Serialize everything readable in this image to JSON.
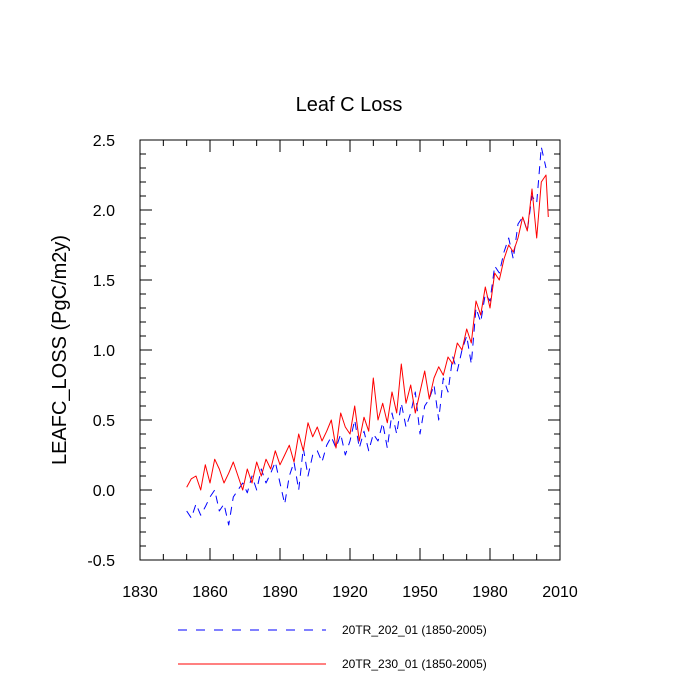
{
  "chart_data": {
    "type": "line",
    "title": "Leaf C Loss",
    "xlabel": "",
    "ylabel": "LEAFC_LOSS  (PgC/m2y)",
    "xlim": [
      1830,
      2010
    ],
    "ylim": [
      -0.5,
      2.5
    ],
    "x_ticks": [
      1830,
      1860,
      1890,
      1920,
      1950,
      1980,
      2010
    ],
    "y_ticks": [
      -0.5,
      0.0,
      0.5,
      1.0,
      1.5,
      2.0,
      2.5
    ],
    "x_tick_labels": [
      "1830",
      "1860",
      "1890",
      "1920",
      "1950",
      "1980",
      "2010"
    ],
    "y_tick_labels": [
      "-0.5",
      "0.0",
      "0.5",
      "1.0",
      "1.5",
      "2.0",
      "2.5"
    ],
    "grid": false,
    "legend_position": "bottom",
    "series": [
      {
        "name": "20TR_202_01 (1850-2005)",
        "color": "#0000ff",
        "style": "dashed",
        "x": [
          1850,
          1852,
          1854,
          1856,
          1858,
          1860,
          1862,
          1864,
          1866,
          1868,
          1870,
          1872,
          1874,
          1876,
          1878,
          1880,
          1882,
          1884,
          1886,
          1888,
          1890,
          1892,
          1894,
          1896,
          1898,
          1900,
          1902,
          1904,
          1906,
          1908,
          1910,
          1912,
          1914,
          1916,
          1918,
          1920,
          1922,
          1924,
          1926,
          1928,
          1930,
          1932,
          1934,
          1936,
          1938,
          1940,
          1942,
          1944,
          1946,
          1948,
          1950,
          1952,
          1954,
          1956,
          1958,
          1960,
          1962,
          1964,
          1966,
          1968,
          1970,
          1972,
          1974,
          1976,
          1978,
          1980,
          1982,
          1984,
          1986,
          1988,
          1990,
          1992,
          1994,
          1996,
          1998,
          2000,
          2002,
          2004
        ],
        "values": [
          -0.15,
          -0.2,
          -0.1,
          -0.18,
          -0.12,
          -0.05,
          0.0,
          -0.15,
          -0.1,
          -0.25,
          -0.05,
          0.0,
          0.05,
          -0.02,
          0.1,
          0.0,
          0.15,
          0.05,
          0.12,
          0.2,
          0.05,
          -0.1,
          0.1,
          0.2,
          0.0,
          0.3,
          0.1,
          0.25,
          0.28,
          0.2,
          0.32,
          0.38,
          0.3,
          0.4,
          0.25,
          0.35,
          0.5,
          0.3,
          0.42,
          0.28,
          0.4,
          0.35,
          0.48,
          0.3,
          0.55,
          0.4,
          0.62,
          0.45,
          0.55,
          0.7,
          0.4,
          0.6,
          0.65,
          0.75,
          0.5,
          0.8,
          0.7,
          0.95,
          0.85,
          1.0,
          1.1,
          0.9,
          1.3,
          1.2,
          1.4,
          1.35,
          1.6,
          1.55,
          1.7,
          1.8,
          1.65,
          1.9,
          1.95,
          1.85,
          2.1,
          2.05,
          2.45,
          2.3
        ]
      },
      {
        "name": "20TR_230_01 (1850-2005)",
        "color": "#ff0000",
        "style": "solid",
        "x": [
          1850,
          1852,
          1854,
          1856,
          1858,
          1860,
          1862,
          1864,
          1866,
          1868,
          1870,
          1872,
          1874,
          1876,
          1878,
          1880,
          1882,
          1884,
          1886,
          1888,
          1890,
          1892,
          1894,
          1896,
          1898,
          1900,
          1902,
          1904,
          1906,
          1908,
          1910,
          1912,
          1914,
          1916,
          1918,
          1920,
          1922,
          1924,
          1926,
          1928,
          1930,
          1932,
          1934,
          1936,
          1938,
          1940,
          1942,
          1944,
          1946,
          1948,
          1950,
          1952,
          1954,
          1956,
          1958,
          1960,
          1962,
          1964,
          1966,
          1968,
          1970,
          1972,
          1974,
          1976,
          1978,
          1980,
          1982,
          1984,
          1986,
          1988,
          1990,
          1992,
          1994,
          1996,
          1998,
          2000,
          2002,
          2004,
          2005
        ],
        "values": [
          0.02,
          0.08,
          0.1,
          0.0,
          0.18,
          0.05,
          0.22,
          0.15,
          0.05,
          0.12,
          0.2,
          0.1,
          0.0,
          0.15,
          0.05,
          0.2,
          0.1,
          0.22,
          0.15,
          0.28,
          0.18,
          0.25,
          0.32,
          0.2,
          0.4,
          0.28,
          0.48,
          0.38,
          0.45,
          0.35,
          0.42,
          0.5,
          0.3,
          0.55,
          0.45,
          0.4,
          0.6,
          0.35,
          0.52,
          0.42,
          0.8,
          0.5,
          0.62,
          0.48,
          0.7,
          0.55,
          0.9,
          0.62,
          0.75,
          0.55,
          0.7,
          0.85,
          0.65,
          0.8,
          0.88,
          0.82,
          0.95,
          0.9,
          1.05,
          1.0,
          1.15,
          1.05,
          1.35,
          1.25,
          1.45,
          1.3,
          1.55,
          1.5,
          1.65,
          1.75,
          1.7,
          1.8,
          1.95,
          1.85,
          2.15,
          1.8,
          2.2,
          2.25,
          1.95
        ]
      }
    ]
  }
}
